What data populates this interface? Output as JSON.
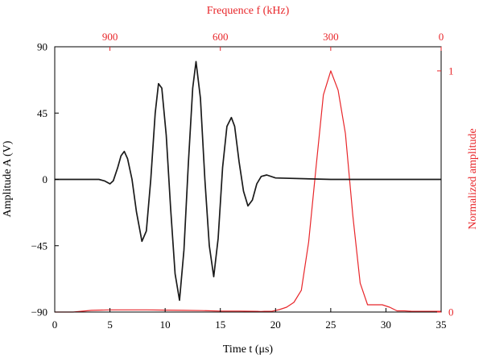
{
  "colors": {
    "waveform": "#1a1a1a",
    "spectrum": "#e8262a",
    "axis": "#000000"
  },
  "labels": {
    "x_bottom": "Time t (μs)",
    "y_left": "Amplitude A (V)",
    "x_top": "Frequence f (kHz)",
    "y_right": "Normalized amplitude"
  },
  "chart_data": [
    {
      "type": "line",
      "name": "time-domain-waveform",
      "xlabel": "Time t (μs)",
      "ylabel": "Amplitude A (V)",
      "xlim": [
        0,
        35
      ],
      "ylim": [
        -90,
        90
      ],
      "xticks": [
        0,
        5,
        10,
        15,
        20,
        25,
        30,
        35
      ],
      "yticks": [
        -90,
        -45,
        0,
        45,
        90
      ],
      "grid": false,
      "x": [
        0,
        1,
        2,
        3,
        4,
        4.5,
        5,
        5.3,
        5.7,
        6.0,
        6.3,
        6.6,
        7.0,
        7.4,
        7.9,
        8.3,
        8.7,
        9.1,
        9.4,
        9.7,
        10.1,
        10.5,
        10.9,
        11.3,
        11.7,
        12.1,
        12.5,
        12.8,
        13.2,
        13.6,
        14.0,
        14.4,
        14.8,
        15.2,
        15.6,
        16.0,
        16.3,
        16.7,
        17.1,
        17.5,
        17.9,
        18.3,
        18.7,
        19.2,
        20,
        25,
        30,
        35
      ],
      "values": [
        0,
        0,
        0,
        0,
        0,
        -1,
        -3,
        -1,
        8,
        16,
        19,
        14,
        0,
        -22,
        -42,
        -35,
        0,
        45,
        65,
        62,
        30,
        -20,
        -64,
        -82,
        -48,
        10,
        62,
        80,
        55,
        0,
        -45,
        -66,
        -40,
        8,
        36,
        42,
        36,
        12,
        -8,
        -18,
        -14,
        -3,
        2,
        3,
        1,
        0,
        0,
        0
      ]
    },
    {
      "type": "line",
      "name": "frequency-spectrum",
      "xlabel": "Frequence f (kHz)",
      "ylabel": "Normalized amplitude",
      "xlim": [
        1050,
        0
      ],
      "ylim": [
        0,
        1.1
      ],
      "xticks": [
        900,
        600,
        300,
        0
      ],
      "yticks": [
        0,
        1
      ],
      "grid": false,
      "x": [
        1050,
        1000,
        950,
        900,
        850,
        800,
        750,
        700,
        650,
        600,
        550,
        500,
        490,
        480,
        460,
        440,
        420,
        400,
        380,
        360,
        340,
        320,
        300,
        280,
        260,
        240,
        220,
        200,
        180,
        160,
        140,
        120,
        100,
        80,
        60,
        40,
        20,
        0
      ],
      "values": [
        0.0,
        0.0,
        0.007,
        0.009,
        0.009,
        0.009,
        0.008,
        0.007,
        0.006,
        0.004,
        0.004,
        0.003,
        0.002,
        0.003,
        0.003,
        0.01,
        0.02,
        0.04,
        0.09,
        0.29,
        0.6,
        0.9,
        1.0,
        0.92,
        0.74,
        0.4,
        0.12,
        0.03,
        0.03,
        0.03,
        0.02,
        0.005,
        0.005,
        0.003,
        0.003,
        0.003,
        0.003,
        0.003
      ]
    }
  ]
}
